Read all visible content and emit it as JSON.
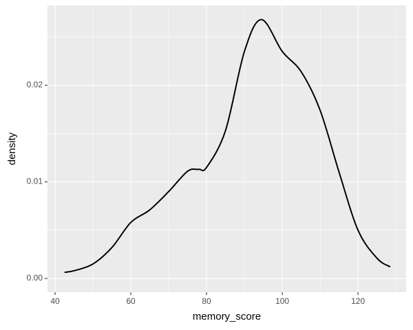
{
  "chart_data": {
    "type": "line",
    "x_label": "memory_score",
    "y_label": "density",
    "x": [
      42.5,
      45,
      50,
      55,
      60,
      65,
      70,
      75,
      78,
      80,
      85,
      90,
      94.5,
      100,
      105,
      110,
      115,
      120,
      125,
      128.5
    ],
    "series": [
      {
        "color": "#000000",
        "values": [
          0.00064,
          0.0008,
          0.0015,
          0.0032,
          0.0058,
          0.0071,
          0.009,
          0.0111,
          0.0113,
          0.0115,
          0.0153,
          0.0235,
          0.0268,
          0.0235,
          0.0214,
          0.0174,
          0.011,
          0.005,
          0.0021,
          0.0012
        ]
      }
    ],
    "xlim": [
      38,
      132.7
    ],
    "ylim": [
      -0.00142,
      0.02826
    ],
    "xticks": [
      40,
      60,
      80,
      100,
      120
    ],
    "yticks": [
      {
        "value": 0,
        "label": "0.00"
      },
      {
        "value": 0.01,
        "label": "0.01"
      },
      {
        "value": 0.02,
        "label": "0.02"
      }
    ],
    "x_minor_ticks": [
      50,
      70,
      90,
      110,
      130
    ],
    "y_minor_ticks": [
      0.005,
      0.015,
      0.025
    ],
    "grid": true
  }
}
